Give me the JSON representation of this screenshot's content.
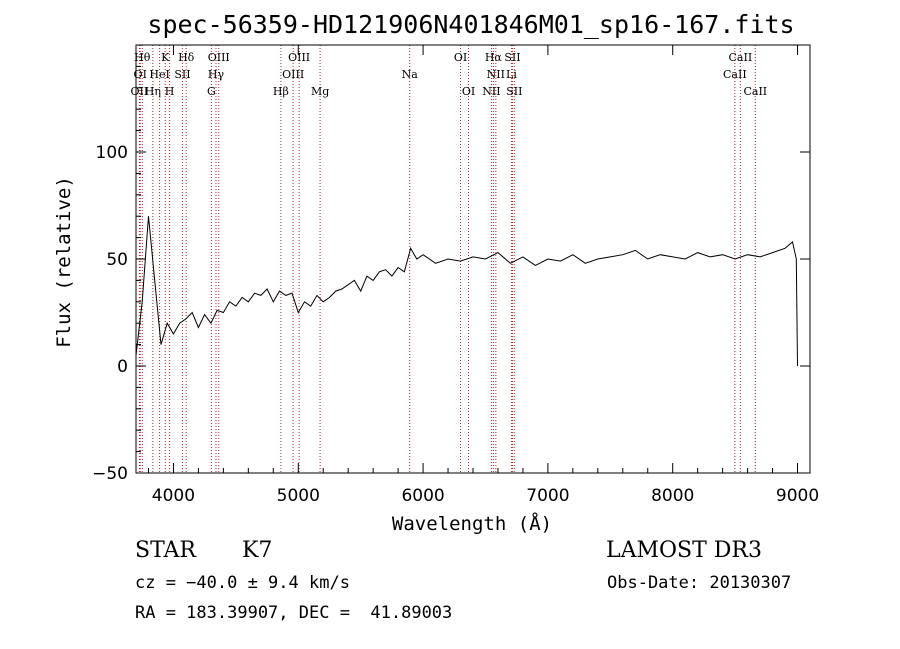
{
  "chart_data": {
    "type": "line",
    "title": "spec-56359-HD121906N401846M01_sp16-167.fits",
    "xlabel": "Wavelength (Å)",
    "ylabel": "Flux (relative)",
    "xlim": [
      3700,
      9100
    ],
    "ylim": [
      -50,
      150
    ],
    "xticks": [
      "4000",
      "5000",
      "6000",
      "7000",
      "8000",
      "9000"
    ],
    "yticks": [
      "−50",
      "0",
      "50",
      "100"
    ],
    "series": [
      {
        "name": "flux",
        "x": [
          3700,
          3750,
          3800,
          3850,
          3900,
          3950,
          4000,
          4050,
          4100,
          4150,
          4200,
          4250,
          4300,
          4350,
          4400,
          4450,
          4500,
          4550,
          4600,
          4650,
          4700,
          4750,
          4800,
          4850,
          4900,
          4950,
          5000,
          5050,
          5100,
          5150,
          5200,
          5250,
          5300,
          5350,
          5400,
          5450,
          5500,
          5550,
          5600,
          5650,
          5700,
          5750,
          5800,
          5850,
          5900,
          5950,
          6000,
          6100,
          6200,
          6300,
          6400,
          6500,
          6600,
          6700,
          6800,
          6900,
          7000,
          7100,
          7200,
          7300,
          7400,
          7500,
          7600,
          7700,
          7800,
          7900,
          8000,
          8100,
          8200,
          8300,
          8400,
          8500,
          8600,
          8700,
          8800,
          8900,
          8960,
          8990,
          9000
        ],
        "y": [
          5,
          30,
          70,
          40,
          10,
          20,
          15,
          20,
          22,
          25,
          18,
          24,
          20,
          26,
          25,
          30,
          28,
          32,
          30,
          34,
          33,
          36,
          30,
          35,
          33,
          34,
          25,
          30,
          28,
          33,
          30,
          32,
          35,
          36,
          38,
          40,
          35,
          42,
          40,
          44,
          45,
          42,
          46,
          44,
          55,
          50,
          52,
          48,
          50,
          49,
          51,
          50,
          53,
          48,
          51,
          47,
          50,
          49,
          52,
          48,
          50,
          51,
          52,
          54,
          50,
          52,
          51,
          50,
          53,
          51,
          52,
          50,
          52,
          51,
          53,
          55,
          58,
          50,
          0
        ]
      }
    ],
    "lines": [
      {
        "name": "OII",
        "x": 3727,
        "row": 2
      },
      {
        "name": "OI",
        "x": 3734,
        "row": 1
      },
      {
        "name": "Hθ",
        "x": 3750,
        "row": 0
      },
      {
        "name": "Hη",
        "x": 3835,
        "row": 2
      },
      {
        "name": "HeI",
        "x": 3889,
        "row": 1
      },
      {
        "name": "K",
        "x": 3934,
        "row": 0
      },
      {
        "name": "H",
        "x": 3969,
        "row": 2
      },
      {
        "name": "SII",
        "x": 4072,
        "row": 1
      },
      {
        "name": "Hδ",
        "x": 4102,
        "row": 0
      },
      {
        "name": "G",
        "x": 4304,
        "row": 2
      },
      {
        "name": "Hγ",
        "x": 4341,
        "row": 1
      },
      {
        "name": "OIII",
        "x": 4363,
        "row": 0
      },
      {
        "name": "Hβ",
        "x": 4861,
        "row": 2
      },
      {
        "name": "OIII",
        "x": 4959,
        "row": 1
      },
      {
        "name": "OIII",
        "x": 5007,
        "row": 0
      },
      {
        "name": "Mg",
        "x": 5175,
        "row": 2
      },
      {
        "name": "Na",
        "x": 5893,
        "row": 1
      },
      {
        "name": "OI",
        "x": 6300,
        "row": 0
      },
      {
        "name": "OI",
        "x": 6364,
        "row": 2
      },
      {
        "name": "NII",
        "x": 6548,
        "row": 2
      },
      {
        "name": "Hα",
        "x": 6563,
        "row": 0
      },
      {
        "name": "NII",
        "x": 6583,
        "row": 1
      },
      {
        "name": "Li",
        "x": 6708,
        "row": 1
      },
      {
        "name": "SII",
        "x": 6716,
        "row": 0
      },
      {
        "name": "SII",
        "x": 6731,
        "row": 2
      },
      {
        "name": "CaII",
        "x": 8498,
        "row": 1
      },
      {
        "name": "CaII",
        "x": 8542,
        "row": 0
      },
      {
        "name": "CaII",
        "x": 8662,
        "row": 2
      }
    ]
  },
  "info": {
    "object_class": "STAR",
    "subclass": "K7",
    "survey": "LAMOST DR3",
    "cz": "cz = −40.0 ± 9.4 km/s",
    "obs_date": "Obs-Date: 20130307",
    "coords": "RA = 183.39907, DEC =  41.89003"
  }
}
